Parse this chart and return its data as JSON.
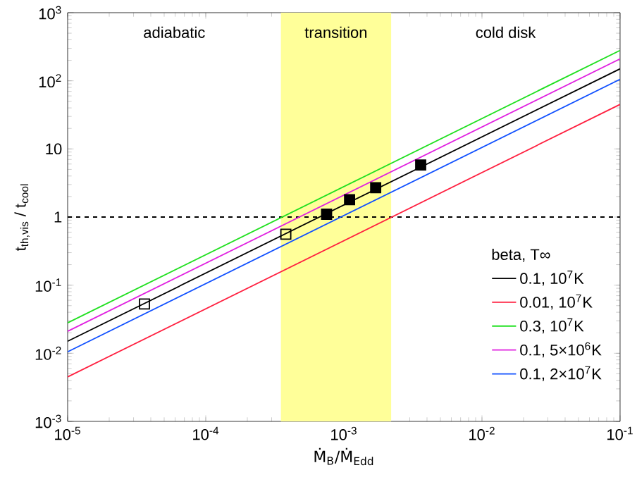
{
  "chart_data": {
    "type": "line",
    "xlabel": "Ṁ$_{B}$/Ṁ$_{Edd}$",
    "ylabel": "t$_{th,vis}$ / t$_{cool}$",
    "legend_title": "beta, T∞",
    "log": "xy",
    "legend": "right",
    "xlim": [
      1e-05,
      0.1
    ],
    "ylim": [
      0.001,
      1000
    ],
    "xticks": [
      {
        "value": 1e-05,
        "label": "10$^{-5}$"
      },
      {
        "value": 0.0001,
        "label": "10$^{-4}$"
      },
      {
        "value": 0.001,
        "label": "10$^{-3}$"
      },
      {
        "value": 0.01,
        "label": "10$^{-2}$"
      },
      {
        "value": 0.1,
        "label": "10$^{-1}$"
      }
    ],
    "yticks": [
      {
        "value": 0.001,
        "label": "10$^{-3}$"
      },
      {
        "value": 0.01,
        "label": "10$^{-2}$"
      },
      {
        "value": 0.1,
        "label": "10$^{-1}$"
      },
      1,
      10,
      {
        "value": 100,
        "label": "10$^{2}$"
      },
      {
        "value": 1000,
        "label": "10$^{3}$"
      }
    ],
    "x": [
      1e-05,
      0.1
    ],
    "series": [
      {
        "name": "0.1, 10$^{7}$K",
        "color": "#000000",
        "values": [
          0.015,
          150
        ]
      },
      {
        "name": "0.01, 10$^{7}$K",
        "color": "#ff2040",
        "values": [
          0.0045,
          45
        ]
      },
      {
        "name": "0.3, 10$^{7}$K",
        "color": "#20e020",
        "values": [
          0.028,
          280
        ]
      },
      {
        "name": "0.1, 5×10$^{6}$K",
        "color": "#e020e0",
        "values": [
          0.021,
          210
        ]
      },
      {
        "name": "0.1, 2×10$^{7}$K",
        "color": "#1050ff",
        "values": [
          0.0105,
          105
        ]
      },
      {
        "type": "scatter",
        "marker": "square",
        "color": "#000000",
        "x": [
          3.6e-05,
          0.00038
        ],
        "values": [
          0.053,
          0.56
        ]
      },
      {
        "type": "scatter",
        "marker": "square",
        "color": "#000000",
        "x": [
          0.00075,
          0.0011,
          0.0017,
          0.0036
        ],
        "values": [
          1.1,
          1.8,
          2.7,
          5.8
        ]
      }
    ],
    "ref_lines": [
      {
        "axis": "y",
        "value": 1,
        "color": "#000000",
        "line_style": "dashed"
      }
    ],
    "bands": [
      {
        "axis": "x",
        "from": 0.00035,
        "to": 0.0022,
        "label": "transition",
        "color": "#ffff99"
      }
    ],
    "annotations": [
      "adiabatic",
      "cold disk"
    ]
  }
}
